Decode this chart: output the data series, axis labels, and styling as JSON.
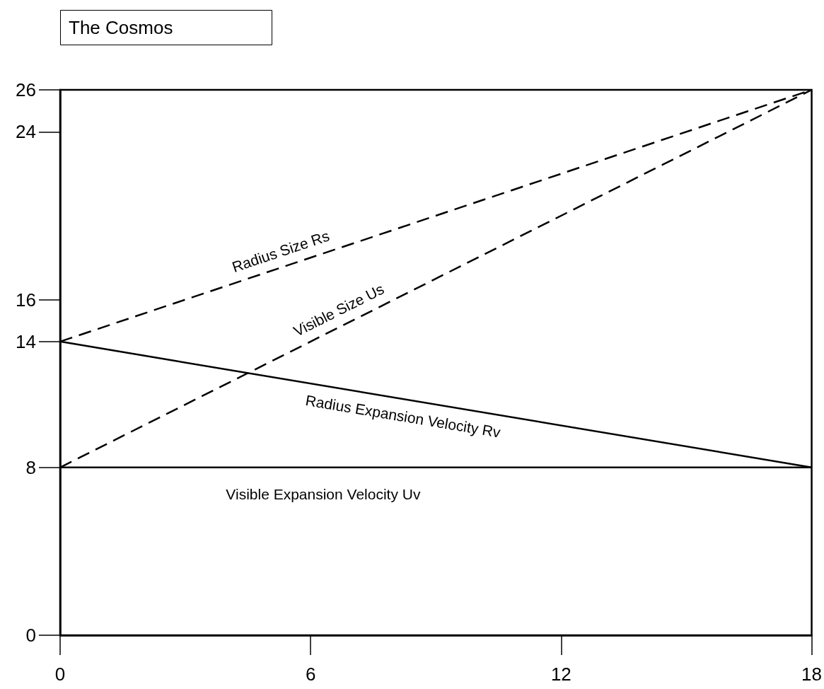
{
  "chart_data": {
    "type": "line",
    "title": "The Cosmos",
    "xlim": [
      0,
      18
    ],
    "xticks": [
      0,
      6,
      12,
      18
    ],
    "ylim": [
      0,
      26
    ],
    "yticks": [
      0,
      8,
      14,
      16,
      24,
      26
    ],
    "grid": false,
    "legend": false,
    "marker": "none",
    "x": [
      0,
      18
    ],
    "series": [
      {
        "name": "Radius Size Rs",
        "color": "#000000",
        "line_style": "dashed",
        "values": [
          14,
          26
        ]
      },
      {
        "name": "Visible Size Us",
        "color": "#000000",
        "line_style": "dashed",
        "values": [
          8,
          26
        ]
      },
      {
        "name": "Radius Expansion Velocity Rv",
        "color": "#000000",
        "line_style": "solid",
        "values": [
          14,
          8
        ]
      },
      {
        "name": "Visible Expansion Velocity Uv",
        "color": "#000000",
        "line_style": "solid",
        "values": [
          8,
          8
        ]
      }
    ]
  }
}
